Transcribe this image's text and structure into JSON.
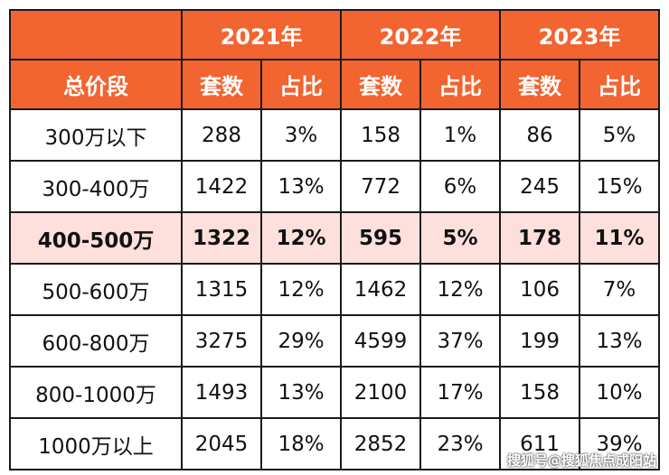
{
  "table": {
    "years": [
      "2021年",
      "2022年",
      "2023年"
    ],
    "segment_header": "总价段",
    "sub_headers": [
      "套数",
      "占比",
      "套数",
      "占比",
      "套数",
      "占比"
    ],
    "rows": [
      {
        "segment": "300万以下",
        "cells": [
          "288",
          "3%",
          "158",
          "1%",
          "86",
          "5%"
        ],
        "highlight": false
      },
      {
        "segment": "300-400万",
        "cells": [
          "1422",
          "13%",
          "772",
          "6%",
          "245",
          "15%"
        ],
        "highlight": false
      },
      {
        "segment": "400-500万",
        "cells": [
          "1322",
          "12%",
          "595",
          "5%",
          "178",
          "11%"
        ],
        "highlight": true
      },
      {
        "segment": "500-600万",
        "cells": [
          "1315",
          "12%",
          "1462",
          "12%",
          "106",
          "7%"
        ],
        "highlight": false
      },
      {
        "segment": "600-800万",
        "cells": [
          "3275",
          "29%",
          "4599",
          "37%",
          "199",
          "13%"
        ],
        "highlight": false
      },
      {
        "segment": "800-1000万",
        "cells": [
          "1493",
          "13%",
          "2100",
          "17%",
          "158",
          "10%"
        ],
        "highlight": false
      },
      {
        "segment": "1000万以上",
        "cells": [
          "2045",
          "18%",
          "2852",
          "23%",
          "611",
          "39%"
        ],
        "highlight": false
      }
    ]
  },
  "colors": {
    "header_bg": "#f26430",
    "header_text": "#ffffff",
    "highlight_bg": "#fde0dc",
    "border": "#1a1a1a"
  },
  "watermark": "搜狐号@搜狐焦点成阳站"
}
